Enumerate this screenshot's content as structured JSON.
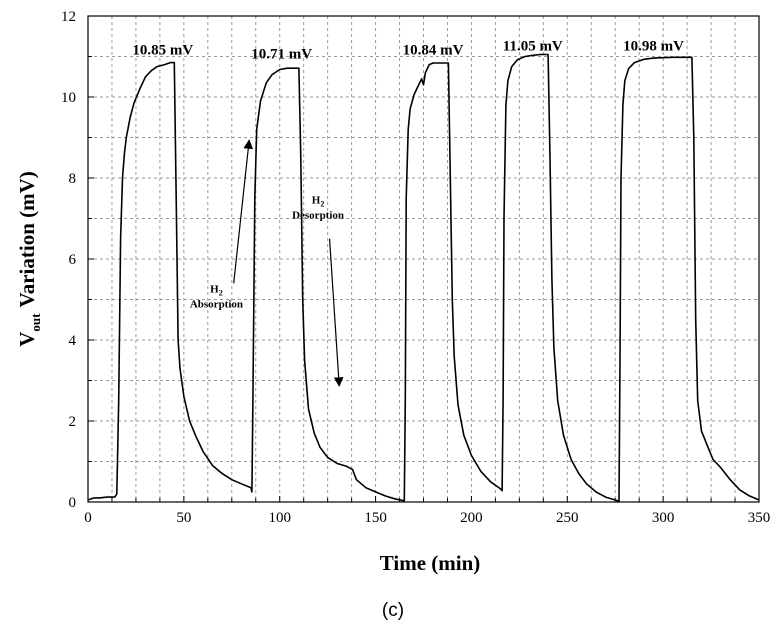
{
  "chart_data": {
    "type": "line",
    "xlabel": "Time (min)",
    "ylabel": "Variation (mV)",
    "ylabel_symbol": "V",
    "ylabel_subscript": "out",
    "xlim": [
      0,
      350
    ],
    "ylim": [
      0,
      12
    ],
    "xticks": [
      0,
      50,
      100,
      150,
      200,
      250,
      300,
      350
    ],
    "yticks": [
      0,
      2,
      4,
      6,
      8,
      10,
      12
    ],
    "grid": true,
    "legend": "none",
    "series": [
      {
        "x": [
          0,
          3,
          6,
          10,
          14,
          15,
          16,
          17,
          18,
          19,
          20,
          22,
          24,
          27,
          30,
          33,
          36,
          40,
          43,
          45,
          46,
          47,
          48,
          50,
          53,
          56,
          60,
          65,
          70,
          75,
          80,
          85,
          85.5,
          86,
          87,
          88,
          90,
          93,
          96,
          100,
          104,
          108,
          110,
          111,
          112,
          113,
          115,
          118,
          121,
          125,
          130,
          135,
          138,
          140,
          145,
          150,
          155,
          160,
          165,
          165.5,
          166,
          167,
          168,
          170,
          172,
          174,
          175,
          176,
          177,
          178,
          180,
          184,
          188,
          189,
          190,
          191,
          193,
          196,
          200,
          205,
          210,
          215,
          216,
          216.5,
          217,
          218,
          219,
          221,
          224,
          228,
          232,
          236,
          240,
          241,
          242,
          243,
          245,
          248,
          252,
          256,
          260,
          265,
          270,
          275,
          277,
          277.5,
          278,
          279,
          280,
          282,
          285,
          290,
          295,
          300,
          305,
          310,
          315,
          316,
          317,
          318,
          320,
          323,
          326,
          330,
          335,
          340,
          345,
          350
        ],
        "y": [
          0.05,
          0.1,
          0.1,
          0.12,
          0.12,
          0.2,
          2.5,
          6.5,
          8.0,
          8.6,
          9.0,
          9.5,
          9.85,
          10.2,
          10.5,
          10.65,
          10.75,
          10.8,
          10.85,
          10.85,
          7.5,
          4.0,
          3.3,
          2.6,
          2.0,
          1.65,
          1.25,
          0.9,
          0.7,
          0.55,
          0.45,
          0.35,
          0.25,
          2.5,
          7.5,
          9.2,
          9.9,
          10.35,
          10.55,
          10.68,
          10.71,
          10.71,
          10.71,
          8.5,
          5.0,
          3.5,
          2.3,
          1.7,
          1.35,
          1.1,
          0.95,
          0.88,
          0.8,
          0.55,
          0.35,
          0.25,
          0.15,
          0.08,
          0.03,
          2.5,
          7.5,
          9.2,
          9.7,
          10.05,
          10.25,
          10.45,
          10.3,
          10.6,
          10.7,
          10.8,
          10.84,
          10.84,
          10.84,
          8.0,
          5.0,
          3.6,
          2.4,
          1.65,
          1.15,
          0.75,
          0.5,
          0.33,
          0.28,
          2.5,
          7.0,
          9.8,
          10.4,
          10.75,
          10.92,
          11.0,
          11.03,
          11.05,
          11.05,
          8.5,
          5.5,
          3.8,
          2.5,
          1.65,
          1.05,
          0.7,
          0.45,
          0.25,
          0.12,
          0.05,
          0.02,
          3.5,
          8.0,
          9.8,
          10.4,
          10.7,
          10.85,
          10.93,
          10.96,
          10.97,
          10.98,
          10.98,
          10.98,
          9.0,
          4.5,
          2.5,
          1.75,
          1.4,
          1.05,
          0.85,
          0.55,
          0.3,
          0.15,
          0.05
        ]
      }
    ],
    "annotations": {
      "peak_labels": [
        {
          "text": "10.85 mV",
          "x": 39,
          "y": 11.05
        },
        {
          "text": "10.71 mV",
          "x": 101,
          "y": 10.95
        },
        {
          "text": "10.84 mV",
          "x": 180,
          "y": 11.05
        },
        {
          "text": "11.05 mV",
          "x": 232,
          "y": 11.15
        },
        {
          "text": "10.98 mV",
          "x": 295,
          "y": 11.15
        }
      ],
      "absorption": {
        "label_main": "H",
        "label_sub": "2",
        "label_line2": "Absorption",
        "x": 67,
        "y": 4.85,
        "arrow_from": [
          76,
          5.4
        ],
        "arrow_to": [
          84,
          8.9
        ]
      },
      "desorption": {
        "label_main": "H",
        "label_sub": "2",
        "label_line2": "Desorption",
        "x": 120,
        "y": 7.05,
        "arrow_from": [
          126,
          6.5
        ],
        "arrow_to": [
          131,
          2.9
        ]
      }
    },
    "caption": "(c)"
  }
}
